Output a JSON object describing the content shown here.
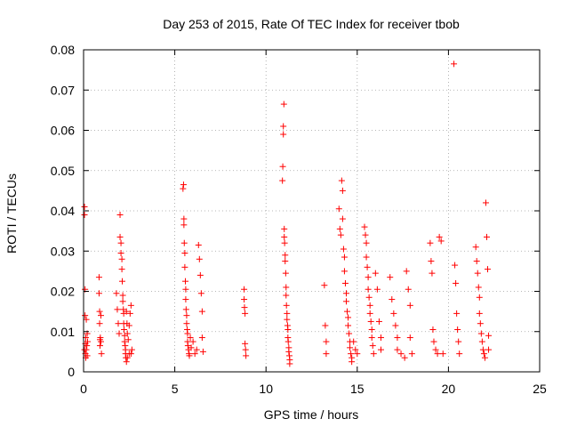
{
  "chart_data": {
    "type": "scatter",
    "title": "Day 253 of 2015, Rate Of TEC Index for receiver tbob",
    "xlabel": "GPS time / hours",
    "ylabel": "ROTI / TECUs",
    "xlim": [
      0,
      25
    ],
    "ylim": [
      0,
      0.08
    ],
    "x_ticks": [
      0,
      5,
      10,
      15,
      20,
      25
    ],
    "x_tick_labels": [
      "0",
      "5",
      "10",
      "15",
      "20",
      "25"
    ],
    "y_ticks": [
      0,
      0.01,
      0.02,
      0.03,
      0.04,
      0.05,
      0.06,
      0.07,
      0.08
    ],
    "y_tick_labels": [
      "0",
      "0.01",
      "0.02",
      "0.03",
      "0.04",
      "0.05",
      "0.06",
      "0.07",
      "0.08"
    ],
    "grid": true,
    "marker": "plus",
    "marker_color": "#ff0000",
    "series": [
      {
        "x": [
          0.05,
          0.05,
          0.05,
          0.08,
          0.08,
          0.1,
          0.1,
          0.12,
          0.12,
          0.15,
          0.15,
          0.18,
          0.2,
          0.2,
          0.22,
          0.85,
          0.85,
          0.88,
          0.88,
          0.9,
          0.9,
          0.92,
          0.95,
          0.95,
          0.98,
          1.8,
          1.85,
          1.9,
          1.95,
          2.0,
          2.0,
          2.05,
          2.05,
          2.1,
          2.1,
          2.12,
          2.15,
          2.15,
          2.18,
          2.2,
          2.2,
          2.22,
          2.25,
          2.25,
          2.28,
          2.3,
          2.3,
          2.32,
          2.35,
          2.35,
          2.38,
          2.4,
          2.4,
          2.45,
          2.5,
          2.5,
          2.55,
          2.6,
          2.6,
          2.65,
          5.45,
          5.48,
          5.5,
          5.5,
          5.52,
          5.55,
          5.55,
          5.58,
          5.6,
          5.6,
          5.62,
          5.65,
          5.65,
          5.68,
          5.7,
          5.7,
          5.72,
          5.75,
          5.78,
          5.8,
          5.85,
          5.9,
          6.0,
          6.1,
          6.2,
          6.3,
          6.35,
          6.4,
          6.45,
          6.5,
          6.5,
          6.55,
          8.8,
          8.8,
          8.82,
          8.85,
          8.85,
          8.88,
          8.9,
          10.9,
          10.92,
          10.95,
          10.95,
          10.98,
          11.0,
          11.0,
          11.02,
          11.05,
          11.05,
          11.08,
          11.1,
          11.1,
          11.12,
          11.15,
          11.15,
          11.18,
          11.2,
          11.2,
          11.22,
          11.25,
          11.25,
          11.28,
          11.3,
          11.3,
          13.2,
          13.25,
          13.3,
          13.3,
          14.0,
          14.05,
          14.1,
          14.15,
          14.2,
          14.2,
          14.25,
          14.3,
          14.3,
          14.35,
          14.4,
          14.4,
          14.45,
          14.5,
          14.5,
          14.55,
          14.6,
          14.6,
          14.65,
          14.7,
          14.7,
          14.8,
          14.9,
          15.0,
          15.4,
          15.45,
          15.5,
          15.5,
          15.55,
          15.6,
          15.6,
          15.65,
          15.7,
          15.7,
          15.75,
          15.8,
          15.8,
          15.85,
          15.9,
          16.0,
          16.1,
          16.2,
          16.3,
          16.3,
          16.8,
          16.9,
          17.0,
          17.1,
          17.2,
          17.2,
          17.4,
          17.6,
          17.7,
          17.8,
          17.9,
          17.9,
          18.0,
          19.0,
          19.05,
          19.1,
          19.15,
          19.2,
          19.3,
          19.4,
          19.5,
          19.6,
          19.7,
          20.3,
          20.35,
          20.4,
          20.45,
          20.5,
          20.55,
          20.6,
          21.5,
          21.55,
          21.6,
          21.65,
          21.7,
          21.7,
          21.75,
          21.8,
          21.85,
          21.9,
          21.95,
          22.0,
          22.05,
          22.1,
          22.15,
          22.2,
          22.2
        ],
        "y": [
          0.041,
          0.039,
          0.0055,
          0.0205,
          0.014,
          0.007,
          0.0045,
          0.0035,
          0.0085,
          0.0055,
          0.013,
          0.0065,
          0.0095,
          0.004,
          0.0075,
          0.0235,
          0.0195,
          0.015,
          0.012,
          0.008,
          0.0065,
          0.0085,
          0.0075,
          0.014,
          0.0045,
          0.0195,
          0.0155,
          0.012,
          0.0095,
          0.039,
          0.0335,
          0.032,
          0.0295,
          0.0255,
          0.028,
          0.0225,
          0.019,
          0.0175,
          0.0155,
          0.0145,
          0.012,
          0.0105,
          0.009,
          0.0075,
          0.0065,
          0.0055,
          0.0045,
          0.0035,
          0.0025,
          0.015,
          0.012,
          0.0095,
          0.0035,
          0.008,
          0.0115,
          0.0045,
          0.0145,
          0.0165,
          0.0045,
          0.0055,
          0.0455,
          0.0465,
          0.038,
          0.0365,
          0.032,
          0.0295,
          0.026,
          0.0225,
          0.0205,
          0.018,
          0.0155,
          0.014,
          0.012,
          0.0105,
          0.0095,
          0.0075,
          0.0065,
          0.0055,
          0.0045,
          0.004,
          0.0085,
          0.006,
          0.0075,
          0.0045,
          0.0055,
          0.0315,
          0.028,
          0.024,
          0.0195,
          0.015,
          0.0085,
          0.005,
          0.0205,
          0.018,
          0.016,
          0.0145,
          0.007,
          0.0055,
          0.004,
          0.0475,
          0.051,
          0.061,
          0.059,
          0.0665,
          0.0355,
          0.0335,
          0.032,
          0.029,
          0.0275,
          0.0245,
          0.021,
          0.019,
          0.0165,
          0.0145,
          0.013,
          0.0115,
          0.0105,
          0.0085,
          0.0075,
          0.006,
          0.005,
          0.004,
          0.003,
          0.002,
          0.0215,
          0.0115,
          0.0075,
          0.0045,
          0.0405,
          0.0355,
          0.034,
          0.0475,
          0.045,
          0.038,
          0.0305,
          0.0285,
          0.025,
          0.022,
          0.0195,
          0.0175,
          0.015,
          0.0135,
          0.0115,
          0.0095,
          0.0075,
          0.006,
          0.0045,
          0.0035,
          0.0025,
          0.0075,
          0.0055,
          0.0045,
          0.036,
          0.034,
          0.032,
          0.0285,
          0.026,
          0.0235,
          0.0205,
          0.0185,
          0.0165,
          0.0145,
          0.0125,
          0.0105,
          0.0085,
          0.0065,
          0.0045,
          0.0245,
          0.0205,
          0.0125,
          0.0085,
          0.0055,
          0.0235,
          0.018,
          0.0145,
          0.0115,
          0.0085,
          0.0055,
          0.0045,
          0.0035,
          0.025,
          0.0205,
          0.0165,
          0.0085,
          0.0045,
          0.032,
          0.0275,
          0.0245,
          0.0105,
          0.0075,
          0.0055,
          0.0045,
          0.0335,
          0.0325,
          0.0045,
          0.0765,
          0.0265,
          0.022,
          0.0145,
          0.0105,
          0.0075,
          0.0045,
          0.031,
          0.0275,
          0.0245,
          0.021,
          0.0185,
          0.0145,
          0.012,
          0.0095,
          0.0075,
          0.0055,
          0.0045,
          0.0035,
          0.042,
          0.0335,
          0.0255,
          0.009,
          0.0055
        ]
      }
    ]
  }
}
